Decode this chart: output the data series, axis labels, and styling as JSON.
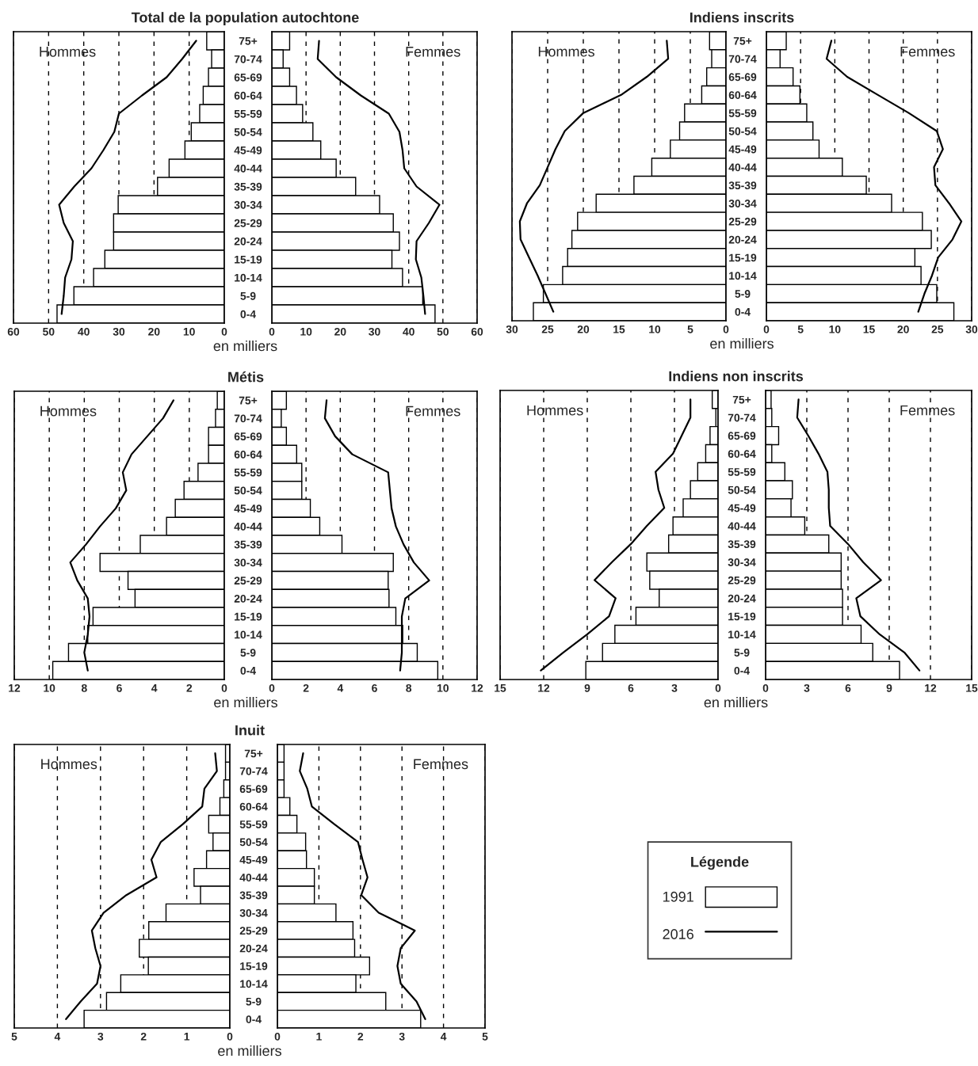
{
  "chart_data": [
    {
      "type": "bar",
      "orientation": "horizontal",
      "title": "Total de la population autochtone",
      "xlabel": "en milliers",
      "annotations": [
        "Hommes"
      ],
      "tick_labels": "x",
      "grid": "x",
      "xlim": [
        60,
        0
      ],
      "xticks": [
        60,
        50,
        40,
        30,
        20,
        10,
        0
      ],
      "categories": [
        null,
        null,
        null,
        null,
        null,
        null,
        null,
        null,
        null,
        null,
        null,
        null,
        null,
        null,
        null,
        null
      ],
      "series": [
        {
          "color": "#ffffff",
          "values": [
            5,
            3.6,
            4.5,
            6,
            7,
            9.4,
            11.2,
            15.7,
            19,
            30.2,
            31.5,
            31.5,
            34,
            37.2,
            42.8,
            47.6
          ]
        },
        {
          "type": "line",
          "color": "#000000",
          "line_style": "solid",
          "values": [
            8,
            12,
            16.4,
            23.4,
            30,
            31.3,
            34.4,
            37.8,
            42.7,
            47,
            45.7,
            43.1,
            43.5,
            45.3,
            45.7,
            46.3
          ]
        }
      ]
    },
    {
      "type": "bar",
      "orientation": "horizontal",
      "annotations": [
        "Femmes"
      ],
      "grid": "x",
      "xlim": [
        0,
        60
      ],
      "xticks": [
        0,
        10,
        20,
        30,
        40,
        50,
        60
      ],
      "categories": [
        "75+",
        "70-74",
        "65-69",
        "60-64",
        "55-59",
        "50-54",
        "45-49",
        "40-44",
        "35-39",
        "30-34",
        "25-29",
        "20-24",
        "15-19",
        "10-14",
        "5-9",
        "0-4"
      ],
      "series": [
        {
          "color": "#ffffff",
          "values": [
            5.2,
            3.3,
            5.2,
            7.2,
            9,
            12,
            14.3,
            18.8,
            24.5,
            31.5,
            35.5,
            37.3,
            35.1,
            38.2,
            44.1,
            47.7
          ]
        },
        {
          "type": "line",
          "color": "#000000",
          "line_style": "solid",
          "values": [
            13.8,
            13.4,
            18.8,
            26,
            34.2,
            37.3,
            38.2,
            38.7,
            42.3,
            49,
            45.9,
            42.3,
            42.1,
            43.7,
            44.3,
            44.8
          ]
        }
      ]
    },
    {
      "type": "bar",
      "orientation": "horizontal",
      "title": "Indiens inscrits",
      "xlabel": "en milliers",
      "annotations": [
        "Hommes"
      ],
      "tick_labels": "x",
      "grid": "x",
      "xlim": [
        30,
        0
      ],
      "xticks": [
        30,
        25,
        20,
        15,
        10,
        5,
        0
      ],
      "categories": [
        null,
        null,
        null,
        null,
        null,
        null,
        null,
        null,
        null,
        null,
        null,
        null,
        null,
        null,
        null,
        null
      ],
      "series": [
        {
          "color": "#ffffff",
          "values": [
            2.3,
            2,
            2.7,
            3.4,
            5.8,
            6.5,
            7.8,
            10.4,
            12.9,
            18.2,
            20.8,
            21.6,
            22.2,
            22.9,
            25.6,
            27
          ]
        },
        {
          "type": "line",
          "color": "#000000",
          "line_style": "solid",
          "values": [
            8.3,
            8.1,
            11.1,
            14.7,
            20,
            22.6,
            23.9,
            25,
            26.1,
            27.9,
            28.9,
            28.8,
            27.6,
            26.4,
            25.3,
            24.2
          ]
        }
      ]
    },
    {
      "type": "bar",
      "orientation": "horizontal",
      "annotations": [
        "Femmes"
      ],
      "grid": "x",
      "xlim": [
        0,
        30
      ],
      "xticks": [
        0,
        5,
        10,
        15,
        20,
        25,
        30
      ],
      "categories": [
        "75+",
        "70-74",
        "65-69",
        "60-64",
        "55-59",
        "50-54",
        "45-49",
        "40-44",
        "35-39",
        "30-34",
        "25-29",
        "20-24",
        "15-19",
        "10-14",
        "5-9",
        "0-4"
      ],
      "series": [
        {
          "color": "#ffffff",
          "values": [
            2.9,
            2,
            3.9,
            4.9,
            5.9,
            6.8,
            7.7,
            11.1,
            14.6,
            18.3,
            22.8,
            24.1,
            21.7,
            22.6,
            24.9,
            27.4
          ]
        },
        {
          "type": "line",
          "color": "#000000",
          "line_style": "solid",
          "values": [
            9.5,
            8.8,
            11.8,
            16.3,
            20.8,
            24.9,
            25.8,
            24.5,
            24.7,
            26.7,
            28.5,
            27.2,
            25.1,
            24.2,
            23.1,
            22.2
          ]
        }
      ]
    },
    {
      "type": "bar",
      "orientation": "horizontal",
      "title": "Métis",
      "xlabel": "en milliers",
      "annotations": [
        "Hommes"
      ],
      "tick_labels": "x",
      "grid": "x",
      "xlim": [
        12,
        0
      ],
      "xticks": [
        12,
        10,
        8,
        6,
        4,
        2,
        0
      ],
      "categories": [
        null,
        null,
        null,
        null,
        null,
        null,
        null,
        null,
        null,
        null,
        null,
        null,
        null,
        null,
        null,
        null
      ],
      "series": [
        {
          "color": "#ffffff",
          "values": [
            0.4,
            0.5,
            0.9,
            0.9,
            1.5,
            2.3,
            2.8,
            3.3,
            4.8,
            7.1,
            5.5,
            5.1,
            7.5,
            7.8,
            8.9,
            9.8
          ]
        },
        {
          "type": "line",
          "color": "#000000",
          "line_style": "solid",
          "values": [
            2.9,
            3.5,
            4.4,
            5.3,
            5.8,
            5.6,
            6.2,
            7.1,
            7.9,
            8.8,
            8.4,
            7.8,
            7.7,
            7.8,
            8,
            7.8
          ]
        }
      ]
    },
    {
      "type": "bar",
      "orientation": "horizontal",
      "annotations": [
        "Femmes"
      ],
      "grid": "x",
      "xlim": [
        0,
        12
      ],
      "xticks": [
        0,
        2,
        4,
        6,
        8,
        10,
        12
      ],
      "categories": [
        "75+",
        "70-74",
        "65-69",
        "60-64",
        "55-59",
        "50-54",
        "45-49",
        "40-44",
        "35-39",
        "30-34",
        "25-29",
        "20-24",
        "15-19",
        "10-14",
        "5-9",
        "0-4"
      ],
      "series": [
        {
          "color": "#ffffff",
          "values": [
            0.85,
            0.55,
            0.85,
            1.45,
            1.75,
            1.75,
            2.25,
            2.8,
            4.1,
            7.1,
            6.8,
            6.85,
            7.25,
            7.65,
            8.5,
            9.7
          ]
        },
        {
          "type": "line",
          "color": "#000000",
          "line_style": "solid",
          "values": [
            3.2,
            3.1,
            3.7,
            4.7,
            6.8,
            6.9,
            7,
            7.25,
            7.7,
            8.3,
            9.2,
            7.8,
            7.6,
            7.6,
            7.6,
            7.5
          ]
        }
      ]
    },
    {
      "type": "bar",
      "orientation": "horizontal",
      "title": "Indiens non inscrits",
      "xlabel": "en milliers",
      "annotations": [
        "Hommes"
      ],
      "tick_labels": "x",
      "grid": "x",
      "xlim": [
        15,
        0
      ],
      "xticks": [
        15,
        12,
        9,
        6,
        3,
        0
      ],
      "categories": [
        null,
        null,
        null,
        null,
        null,
        null,
        null,
        null,
        null,
        null,
        null,
        null,
        null,
        null,
        null,
        null
      ],
      "series": [
        {
          "color": "#ffffff",
          "values": [
            0.4,
            0.15,
            0.55,
            0.85,
            1.4,
            1.9,
            2.4,
            3.1,
            3.4,
            4.9,
            4.7,
            4.05,
            5.65,
            7.1,
            7.95,
            9.1
          ]
        },
        {
          "type": "line",
          "color": "#000000",
          "line_style": "solid",
          "values": [
            1.9,
            1.9,
            2.5,
            3.1,
            4.3,
            4.1,
            3.7,
            4.9,
            6,
            7.3,
            8.5,
            7.05,
            7.5,
            9,
            10.65,
            12.2
          ]
        }
      ]
    },
    {
      "type": "bar",
      "orientation": "horizontal",
      "annotations": [
        "Femmes"
      ],
      "grid": "x",
      "xlim": [
        0,
        15
      ],
      "xticks": [
        0,
        3,
        6,
        9,
        12,
        15
      ],
      "categories": [
        "75+",
        "70-74",
        "65-69",
        "60-64",
        "55-59",
        "50-54",
        "45-49",
        "40-44",
        "35-39",
        "30-34",
        "25-29",
        "20-24",
        "15-19",
        "10-14",
        "5-9",
        "0-4"
      ],
      "series": [
        {
          "color": "#ffffff",
          "values": [
            0.4,
            0.45,
            0.95,
            0.45,
            1.4,
            1.95,
            1.85,
            2.85,
            4.6,
            5.5,
            5.5,
            5.6,
            5.6,
            6.95,
            7.8,
            9.75
          ]
        },
        {
          "type": "line",
          "color": "#000000",
          "line_style": "solid",
          "values": [
            2.4,
            2.3,
            3.1,
            3.85,
            4.5,
            4.6,
            4.6,
            4.7,
            6,
            7.1,
            8.4,
            6.6,
            6.9,
            8.3,
            10.1,
            11.2
          ]
        }
      ]
    },
    {
      "type": "bar",
      "orientation": "horizontal",
      "title": "Inuit",
      "xlabel": "en milliers",
      "annotations": [
        "Hommes"
      ],
      "tick_labels": "x",
      "grid": "x",
      "xlim": [
        5,
        0
      ],
      "xticks": [
        5,
        4,
        3,
        2,
        1,
        0
      ],
      "categories": [
        null,
        null,
        null,
        null,
        null,
        null,
        null,
        null,
        null,
        null,
        null,
        null,
        null,
        null,
        null,
        null
      ],
      "series": [
        {
          "color": "#ffffff",
          "values": [
            0.1,
            0.1,
            0.14,
            0.23,
            0.49,
            0.39,
            0.54,
            0.83,
            0.68,
            1.48,
            1.88,
            2.1,
            1.89,
            2.53,
            2.86,
            3.38
          ]
        },
        {
          "type": "line",
          "color": "#000000",
          "line_style": "solid",
          "values": [
            0.34,
            0.3,
            0.59,
            0.64,
            1.09,
            1.6,
            1.82,
            1.7,
            2.4,
            2.93,
            3.2,
            3.12,
            3,
            3.08,
            3.46,
            3.8
          ]
        }
      ]
    },
    {
      "type": "bar",
      "orientation": "horizontal",
      "annotations": [
        "Femmes"
      ],
      "grid": "x",
      "xlim": [
        0,
        5
      ],
      "xticks": [
        0,
        1,
        2,
        3,
        4,
        5
      ],
      "legend": "right",
      "legend_title": "Légende",
      "categories": [
        "75+",
        "70-74",
        "65-69",
        "60-64",
        "55-59",
        "50-54",
        "45-49",
        "40-44",
        "35-39",
        "30-34",
        "25-29",
        "20-24",
        "15-19",
        "10-14",
        "5-9",
        "0-4"
      ],
      "series": [
        {
          "name": "1991",
          "color": "#ffffff",
          "values": [
            0.16,
            0.16,
            0.16,
            0.3,
            0.47,
            0.68,
            0.7,
            0.89,
            0.89,
            1.41,
            1.82,
            1.86,
            2.22,
            1.89,
            2.61,
            3.45
          ]
        },
        {
          "name": "2016",
          "type": "line",
          "color": "#000000",
          "line_style": "solid",
          "values": [
            0.62,
            0.54,
            0.72,
            0.83,
            1.37,
            1.94,
            2.05,
            2.17,
            2.02,
            2.44,
            3.31,
            2.97,
            2.89,
            2.97,
            3.35,
            3.56
          ]
        }
      ]
    }
  ]
}
